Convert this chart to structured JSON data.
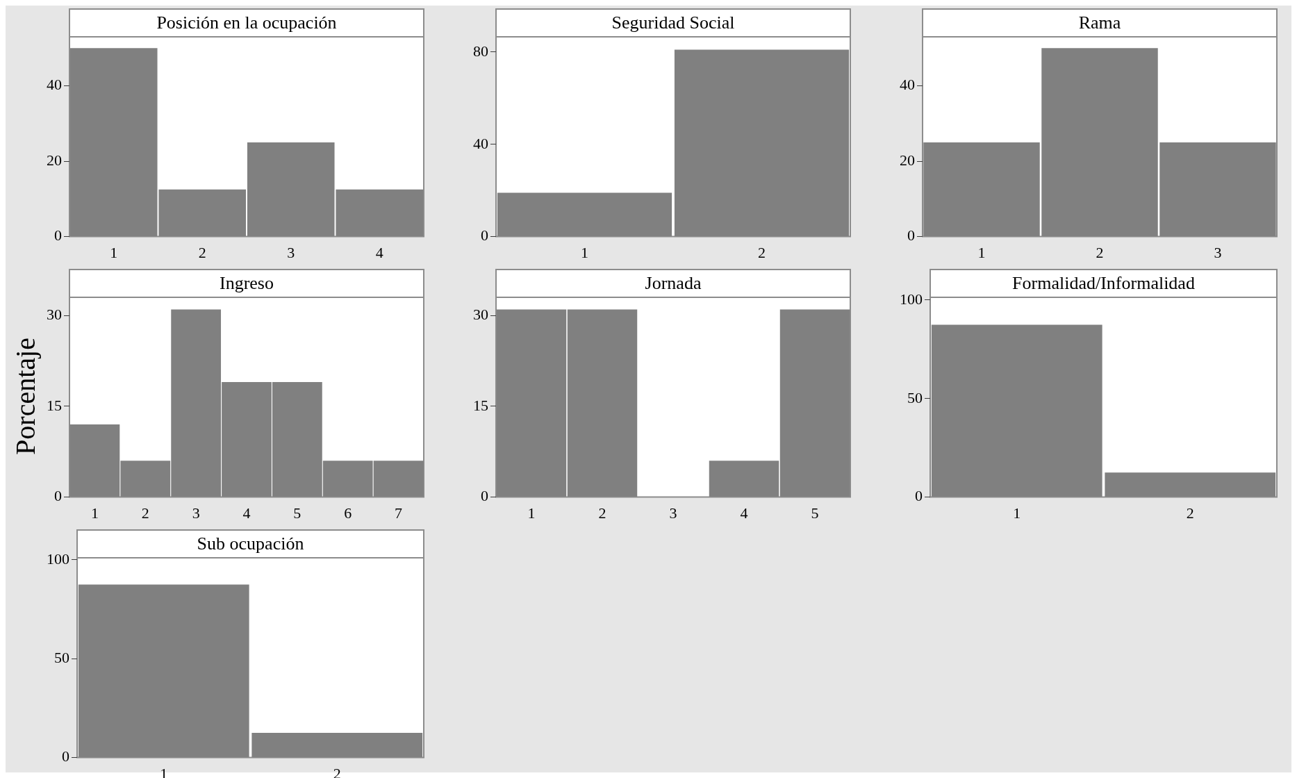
{
  "chart_data": [
    {
      "type": "bar",
      "title": "Posición en la ocupación",
      "categories": [
        "1",
        "2",
        "3",
        "4"
      ],
      "values": [
        50,
        12.5,
        25,
        12.5
      ],
      "color": "#808080",
      "ylim": [
        0,
        53
      ],
      "yticks": [
        0,
        20,
        40
      ]
    },
    {
      "type": "bar",
      "title": "Seguridad Social",
      "categories": [
        "1",
        "2"
      ],
      "values": [
        19,
        81
      ],
      "color": "#808080",
      "ylim": [
        0,
        86.6
      ],
      "yticks": [
        0,
        40,
        80
      ]
    },
    {
      "type": "bar",
      "title": "Rama",
      "categories": [
        "1",
        "2",
        "3"
      ],
      "values": [
        25,
        50,
        25
      ],
      "color": "#808080",
      "ylim": [
        0,
        53
      ],
      "yticks": [
        0,
        20,
        40
      ]
    },
    {
      "type": "bar",
      "title": "Ingreso",
      "ylabel": "Porcentaje",
      "categories": [
        "1",
        "2",
        "3",
        "4",
        "5",
        "6",
        "7"
      ],
      "values": [
        12,
        6,
        31,
        19,
        19,
        6,
        6
      ],
      "color": "#808080",
      "ylim": [
        0,
        33
      ],
      "yticks": [
        0,
        15,
        30
      ]
    },
    {
      "type": "bar",
      "title": "Jornada",
      "categories": [
        "1",
        "2",
        "3",
        "4",
        "5"
      ],
      "values": [
        31,
        31,
        0,
        6,
        31
      ],
      "color": "#808080",
      "ylim": [
        0,
        33
      ],
      "yticks": [
        0,
        15,
        30
      ]
    },
    {
      "type": "bar",
      "title": "Formalidad/Informalidad",
      "categories": [
        "1",
        "2"
      ],
      "values": [
        87.5,
        12.5
      ],
      "color": "#808080",
      "ylim": [
        0,
        101.4
      ],
      "yticks": [
        0,
        50,
        100
      ]
    },
    {
      "type": "bar",
      "title": "Sub ocupación",
      "categories": [
        "1",
        "2"
      ],
      "values": [
        87.5,
        12.5
      ],
      "color": "#808080",
      "ylim": [
        0,
        101
      ],
      "yticks": [
        0,
        50,
        100
      ]
    }
  ]
}
